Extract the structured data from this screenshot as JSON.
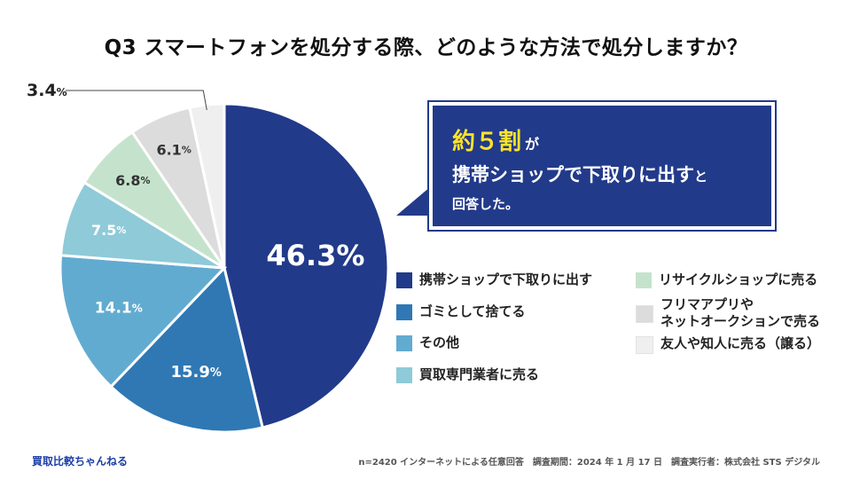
{
  "title": "Q3 スマートフォンを処分する際、どのような方法で処分しますか？",
  "chart_data": {
    "type": "pie",
    "title": "Q3 スマートフォンを処分する際、どのような方法で処分しますか？",
    "slices": [
      {
        "label": "携帯ショップで下取りに出す",
        "value": 46.3,
        "color": "#223a8a",
        "display": "46.3",
        "unit": "%"
      },
      {
        "label": "ゴミとして捨てる",
        "value": 15.9,
        "color": "#2f78b4",
        "display": "15.9",
        "unit": "%"
      },
      {
        "label": "その他",
        "value": 14.1,
        "color": "#62abd0",
        "display": "14.1",
        "unit": "%"
      },
      {
        "label": "買取専門業者に売る",
        "value": 7.5,
        "color": "#8fcad8",
        "display": "7.5",
        "unit": "%"
      },
      {
        "label": "リサイクルショップに売る",
        "value": 6.8,
        "color": "#c5e3cc",
        "display": "6.8",
        "unit": "%"
      },
      {
        "label": "フリマアプリやネットオークションで売る",
        "value": 6.1,
        "color": "#dcdcdc",
        "display": "6.1",
        "unit": "%"
      },
      {
        "label": "友人や知人に売る（譲る）",
        "value": 3.4,
        "color": "#efefef",
        "display": "3.4",
        "unit": "%"
      }
    ]
  },
  "callout": {
    "line1_highlight": "約５割",
    "line1_tail": "が",
    "line2_main": "携帯ショップで下取りに出す",
    "line2_tail": "と",
    "line3": "回答した。"
  },
  "legend": [
    {
      "label": "携帯ショップで下取りに出す",
      "color": "#223a8a"
    },
    {
      "label": "ゴミとして捨てる",
      "color": "#2f78b4"
    },
    {
      "label": "その他",
      "color": "#62abd0"
    },
    {
      "label": "買取専門業者に売る",
      "color": "#8fcad8"
    },
    {
      "label": "リサイクルショップに売る",
      "color": "#c5e3cc"
    },
    {
      "label": "フリマアプリや\nネットオークションで売る",
      "color": "#dcdcdc"
    },
    {
      "label": "友人や知人に売る（譲る）",
      "color": "#efefef"
    }
  ],
  "footer": {
    "brand": "買取比較ちゃんねる",
    "note": "n=2420 インターネットによる任意回答　調査期間：2024 年 1 月 17 日　調査実行者：株式会社 STS デジタル"
  }
}
